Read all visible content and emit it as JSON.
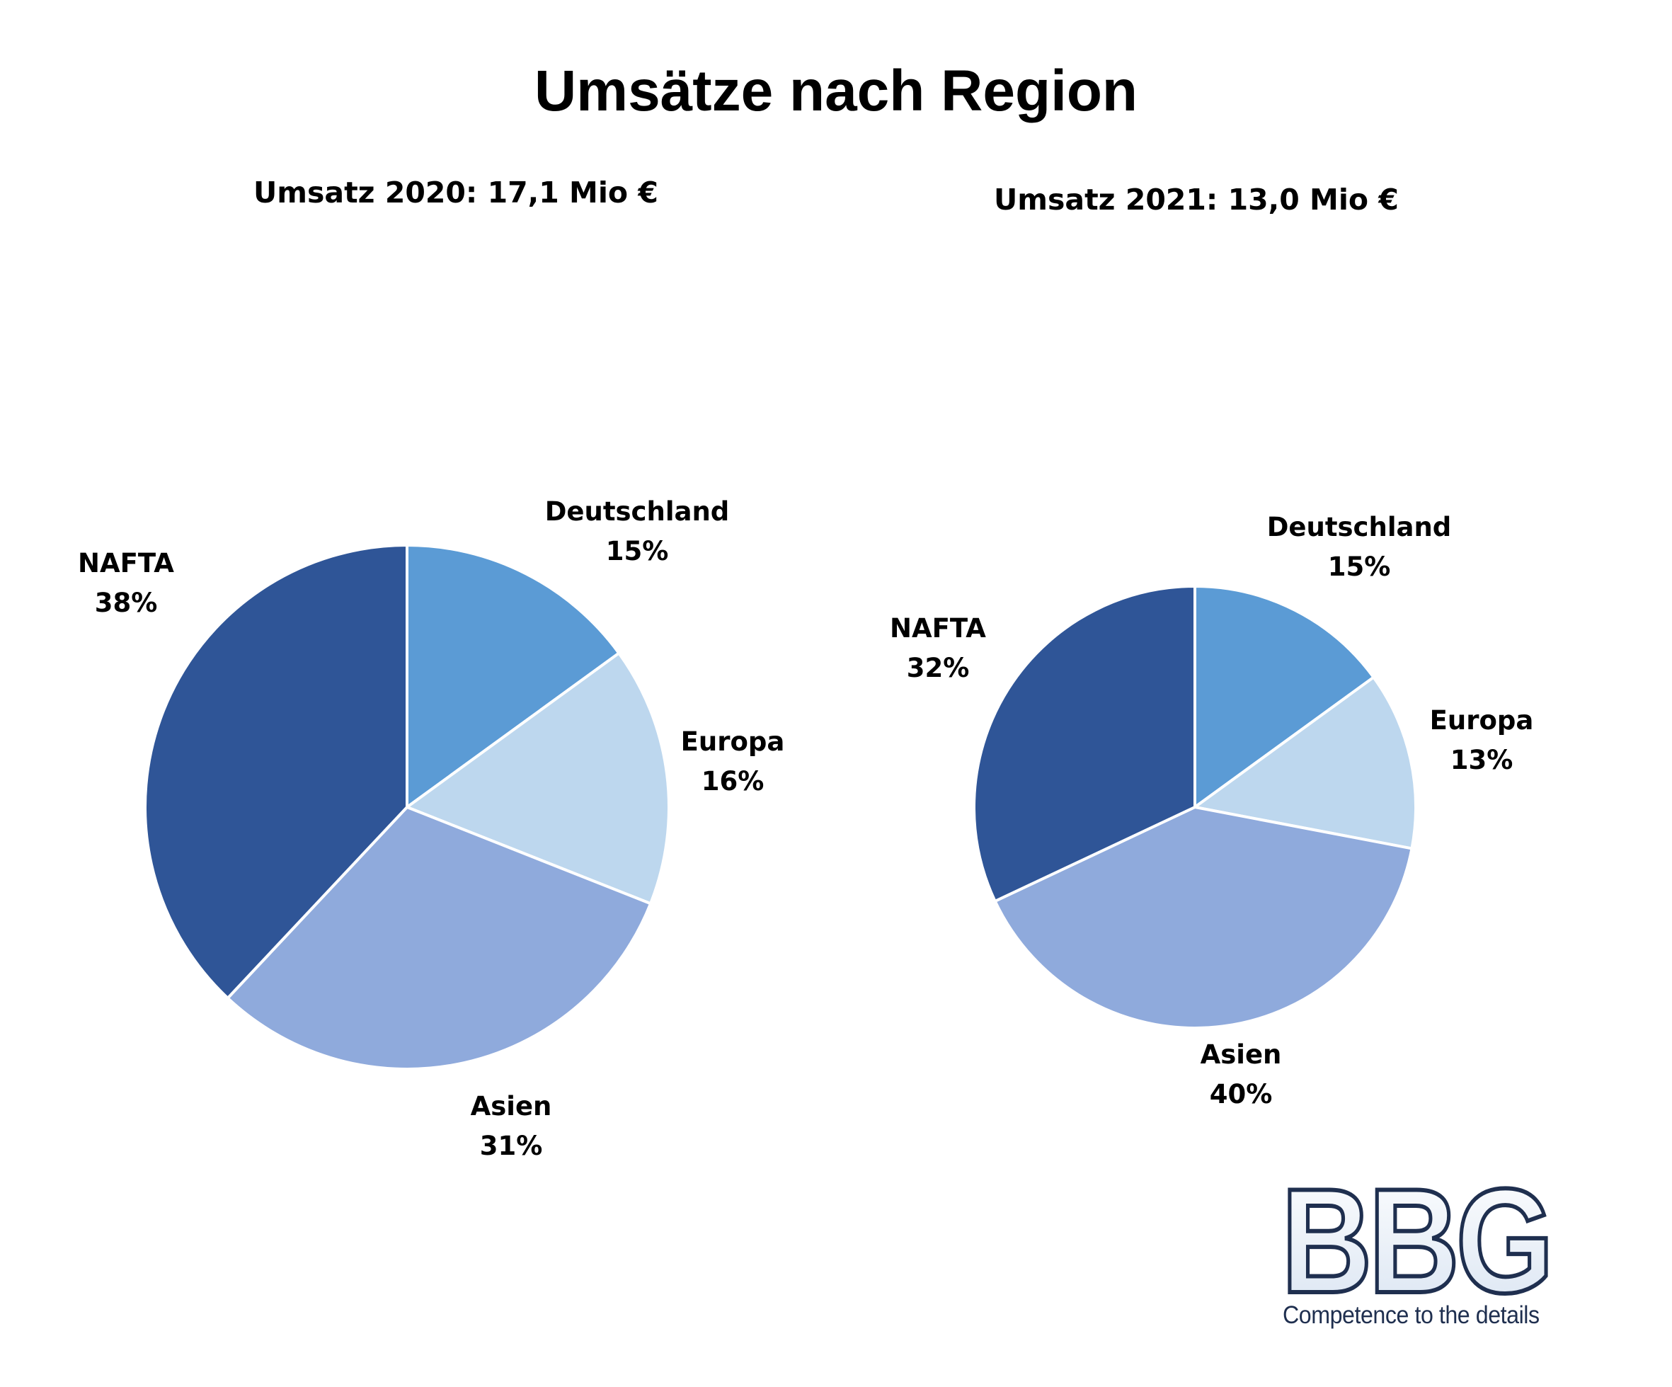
{
  "page_title": "Umsätze nach Region",
  "chart_data": [
    {
      "type": "pie",
      "title": "Umsatz 2020: 17,1 Mio €",
      "categories": [
        "Deutschland",
        "Europa",
        "Asien",
        "NAFTA"
      ],
      "values": [
        15,
        16,
        31,
        38
      ],
      "value_labels": [
        "15%",
        "16%",
        "31%",
        "38%"
      ],
      "unit": "%",
      "colors": [
        "#5b9bd5",
        "#bdd7ee",
        "#8faadc",
        "#2f5597"
      ],
      "legend": "none"
    },
    {
      "type": "pie",
      "title": "Umsatz 2021: 13,0 Mio €",
      "categories": [
        "Deutschland",
        "Europa",
        "Asien",
        "NAFTA"
      ],
      "values": [
        15,
        13,
        40,
        32
      ],
      "value_labels": [
        "15%",
        "13%",
        "40%",
        "32%"
      ],
      "unit": "%",
      "colors": [
        "#5b9bd5",
        "#bdd7ee",
        "#8faadc",
        "#2f5597"
      ],
      "legend": "none"
    }
  ],
  "logo": {
    "text": "BBG",
    "tagline": "Competence to the details"
  }
}
